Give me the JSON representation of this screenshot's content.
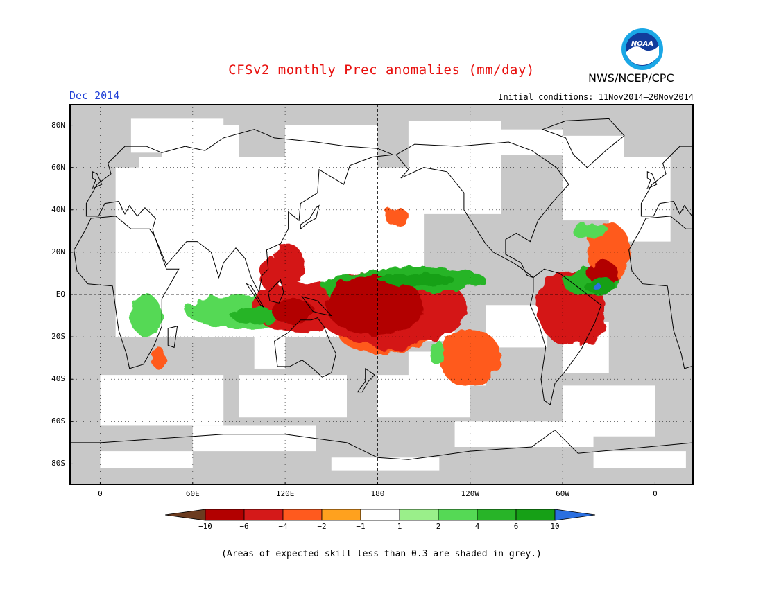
{
  "header": {
    "title": "CFSv2 monthly Prec anomalies (mm/day)",
    "month": "Dec 2014",
    "initial_conditions": "Initial conditions: 11Nov2014–20Nov2014",
    "agency": "NWS/NCEP/CPC",
    "logo_text": "NOAA"
  },
  "map": {
    "lat_labels": [
      "80N",
      "60N",
      "40N",
      "20N",
      "EQ",
      "20S",
      "40S",
      "60S",
      "80S"
    ],
    "lon_labels": [
      "0",
      "60E",
      "120E",
      "180",
      "120W",
      "60W",
      "0"
    ],
    "lat_values": [
      80,
      60,
      40,
      20,
      0,
      -20,
      -40,
      -60,
      -80
    ],
    "lon_values": [
      0,
      60,
      120,
      180,
      240,
      300,
      360
    ],
    "lon_range": [
      -20,
      385
    ],
    "lat_range": [
      -90,
      90
    ],
    "grey_color": "#c8c8c8",
    "anomaly_regions": [
      {
        "name": "central-pacific-dry",
        "lon": 178,
        "lat": -5,
        "value": -6
      },
      {
        "name": "central-pacific-dry-ring",
        "lon": 188,
        "lat": -6,
        "value": -4
      },
      {
        "name": "spcz-dry",
        "lon": 185,
        "lat": -19,
        "value": -3
      },
      {
        "name": "spcz-dry-core",
        "lon": 190,
        "lat": -22,
        "value": -5
      },
      {
        "name": "se-pacific-dry",
        "lon": 240,
        "lat": -30,
        "value": -2
      },
      {
        "name": "maritime-continent-dry",
        "lon": 130,
        "lat": -6,
        "value": -4
      },
      {
        "name": "maritime-continent-dry-core",
        "lon": 125,
        "lat": -8,
        "value": -6
      },
      {
        "name": "philippines-dry",
        "lon": 122,
        "lat": 14,
        "value": -4
      },
      {
        "name": "south-china-sea-dry",
        "lon": 110,
        "lat": 10,
        "value": -4
      },
      {
        "name": "north-pacific-dry",
        "lon": 192,
        "lat": 37,
        "value": -2
      },
      {
        "name": "amazon-dry",
        "lon": 305,
        "lat": -6,
        "value": -4
      },
      {
        "name": "nordeste-dry",
        "lon": 318,
        "lat": -13,
        "value": -4
      },
      {
        "name": "atlantic-north-dry",
        "lon": 330,
        "lat": 20,
        "value": -2
      },
      {
        "name": "atlantic-itcz-dry",
        "lon": 326,
        "lat": 10,
        "value": -6
      },
      {
        "name": "east-africa-dry",
        "lon": 38,
        "lat": -30,
        "value": -2
      },
      {
        "name": "itcz-wet",
        "lon": 205,
        "lat": 7,
        "value": 4
      },
      {
        "name": "itcz-wet-core",
        "lon": 205,
        "lat": 7,
        "value": 6
      },
      {
        "name": "west-pacific-wet",
        "lon": 160,
        "lat": 3,
        "value": 4
      },
      {
        "name": "indian-ocean-wet",
        "lon": 95,
        "lat": -8,
        "value": 2
      },
      {
        "name": "indian-ocean-wet-core",
        "lon": 100,
        "lat": -10,
        "value": 4
      },
      {
        "name": "tropical-africa-wet",
        "lon": 30,
        "lat": -10,
        "value": 2
      },
      {
        "name": "atlantic-itcz-wet",
        "lon": 318,
        "lat": 6,
        "value": 4
      },
      {
        "name": "atlantic-itcz-wet-core",
        "lon": 324,
        "lat": 4,
        "value": 6
      },
      {
        "name": "atlantic-wet-max",
        "lon": 322,
        "lat": 4,
        "value": 10
      },
      {
        "name": "west-atlantic-wet",
        "lon": 318,
        "lat": 30,
        "value": 2
      },
      {
        "name": "south-pacific-wet",
        "lon": 218,
        "lat": -27,
        "value": 2
      }
    ]
  },
  "colorbar": {
    "labels": [
      "−10",
      "−6",
      "−4",
      "−2",
      "−1",
      "1",
      "2",
      "4",
      "6",
      "10"
    ],
    "colors": [
      "#6b3b1f",
      "#b20000",
      "#d41919",
      "#ff5a1e",
      "#ffa11e",
      "#ffffff",
      "#9aef8a",
      "#55d955",
      "#28b428",
      "#16a016",
      "#2a6fe0"
    ]
  },
  "footnote": "(Areas of expected skill less than 0.3 are shaded in grey.)"
}
